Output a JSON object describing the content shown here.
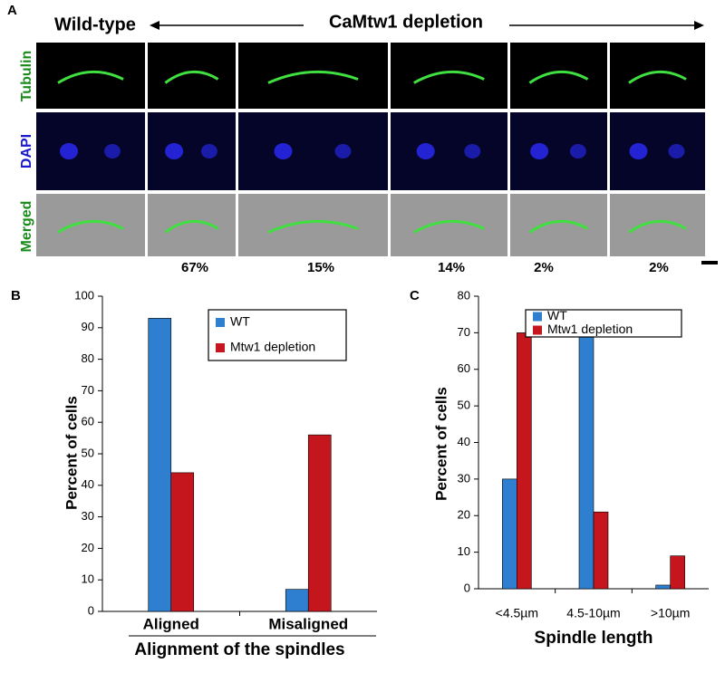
{
  "panel_a": {
    "label": "A",
    "wild_type": "Wild-type",
    "depletion": "CaMtw1 depletion",
    "rows": [
      "Tubulin",
      "DAPI",
      "Merged"
    ],
    "percentages": [
      "67%",
      "15%",
      "14%",
      "2%",
      "2%"
    ]
  },
  "chart_data": [
    {
      "type": "bar",
      "panel_label": "B",
      "y_label": "Percent of cells",
      "x_label": "Alignment of the spindles",
      "categories": [
        "Aligned",
        "Misaligned"
      ],
      "series": [
        {
          "name": "WT",
          "color": "#2e7fcf",
          "values": [
            93,
            7
          ]
        },
        {
          "name": "Mtw1 depletion",
          "color": "#c4161c",
          "values": [
            44,
            56
          ]
        }
      ],
      "ylim": [
        0,
        100
      ],
      "yticks": [
        0,
        10,
        20,
        30,
        40,
        50,
        60,
        70,
        80,
        90,
        100
      ]
    },
    {
      "type": "bar",
      "panel_label": "C",
      "y_label": "Percent of cells",
      "x_label": "Spindle length",
      "categories": [
        "<4.5µm",
        "4.5-10µm",
        ">10µm"
      ],
      "series": [
        {
          "name": "WT",
          "color": "#2e7fcf",
          "values": [
            30,
            69,
            1
          ]
        },
        {
          "name": "Mtw1 depletion",
          "color": "#c4161c",
          "values": [
            70,
            21,
            9
          ]
        }
      ],
      "ylim": [
        0,
        80
      ],
      "yticks": [
        0,
        10,
        20,
        30,
        40,
        50,
        60,
        70,
        80
      ]
    }
  ]
}
